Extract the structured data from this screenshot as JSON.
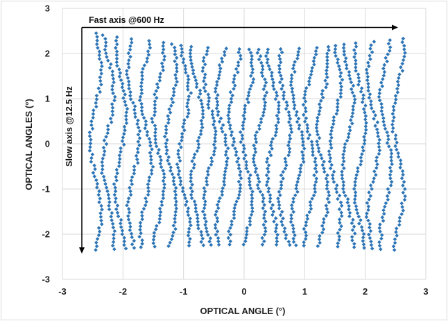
{
  "chart_data": {
    "type": "scatter",
    "title": "",
    "xlabel": "OPTICAL ANGLE (°)",
    "ylabel": "OPTICAL ANGLES (°)",
    "xlim": [
      -3,
      3
    ],
    "ylim": [
      -3,
      3
    ],
    "x_ticks": [
      "-3",
      "-2",
      "-1",
      "0",
      "1",
      "2",
      "3"
    ],
    "y_ticks": [
      "-3",
      "-2",
      "-1",
      "0",
      "1",
      "2",
      "3"
    ],
    "grid": true,
    "marker": "diamond",
    "color": "#2E75B6",
    "annotations": {
      "fast_axis": "Fast axis @600 Hz",
      "slow_axis": "Slow axis @12.5 Hz"
    },
    "scan_pattern": {
      "x_range": [
        -2.45,
        2.55
      ],
      "y_range": [
        -2.35,
        2.45
      ],
      "fast_axis_lines": 25,
      "points_per_line": 60
    }
  }
}
